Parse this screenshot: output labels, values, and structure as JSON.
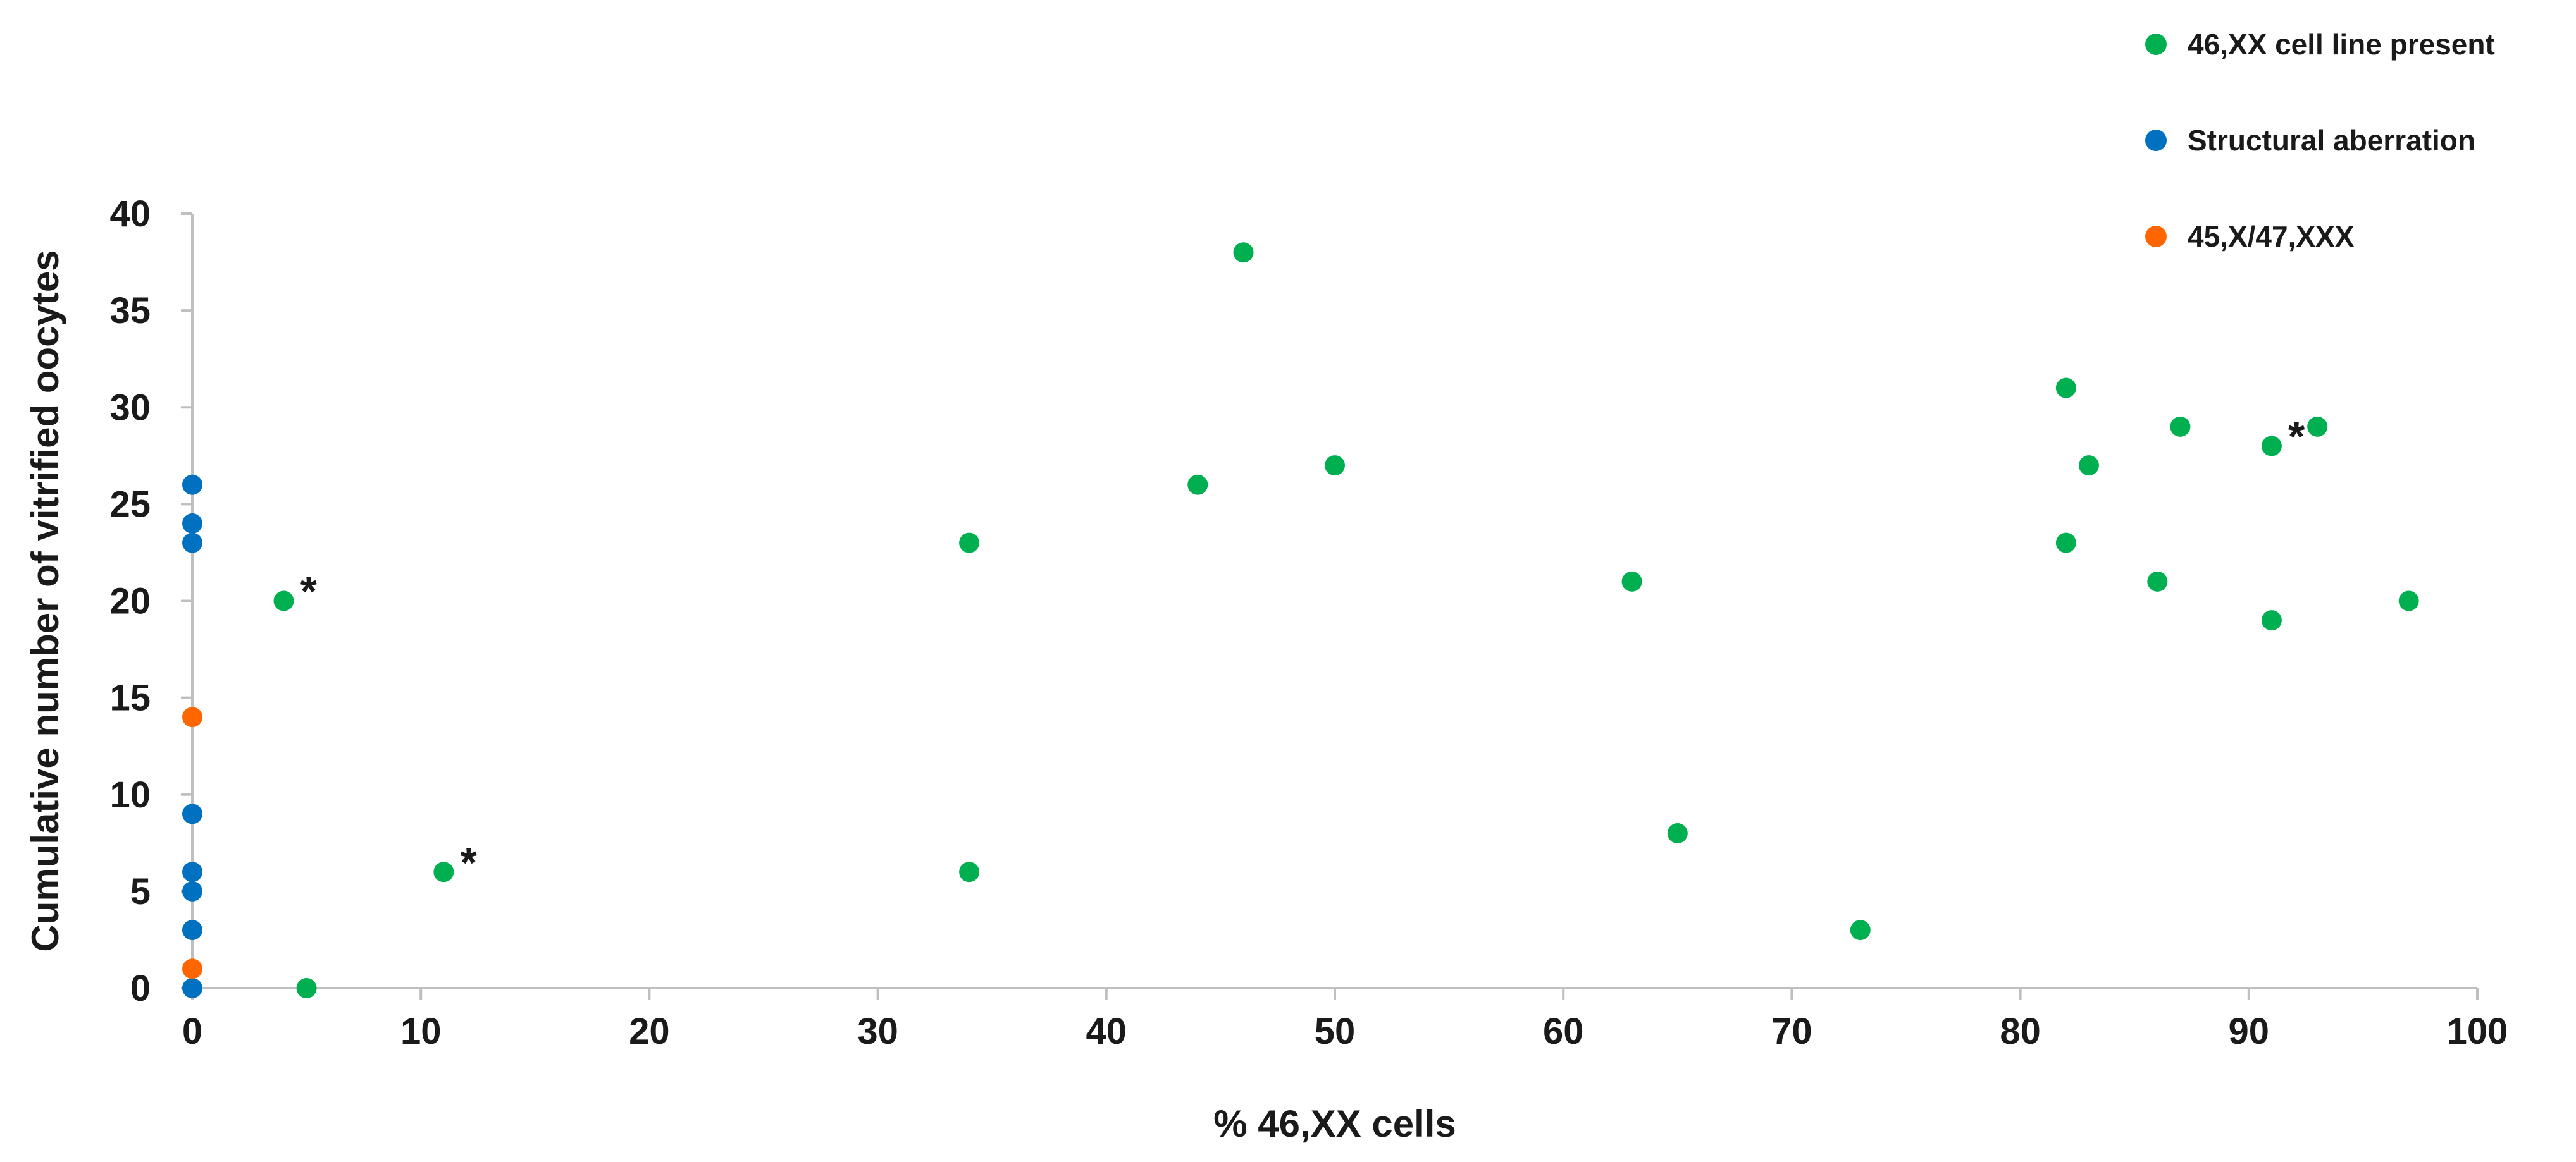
{
  "chart_data": {
    "type": "scatter",
    "xlabel": "% 46,XX cells",
    "ylabel": "Cumulative number of vitrified oocytes",
    "xlim": [
      0,
      100
    ],
    "ylim": [
      0,
      40
    ],
    "x_ticks": [
      0,
      10,
      20,
      30,
      40,
      50,
      60,
      70,
      80,
      90,
      100
    ],
    "y_ticks": [
      0,
      5,
      10,
      15,
      20,
      25,
      30,
      35,
      40
    ],
    "grid": false,
    "legend_position": "top-right",
    "series": [
      {
        "name": "46,XX cell line present",
        "color": "#00b050",
        "points": [
          {
            "x": 4,
            "y": 20,
            "note": "*"
          },
          {
            "x": 5,
            "y": 0
          },
          {
            "x": 11,
            "y": 6,
            "note": "*"
          },
          {
            "x": 34,
            "y": 23
          },
          {
            "x": 34,
            "y": 6
          },
          {
            "x": 44,
            "y": 26
          },
          {
            "x": 46,
            "y": 38
          },
          {
            "x": 50,
            "y": 27
          },
          {
            "x": 63,
            "y": 21
          },
          {
            "x": 65,
            "y": 8
          },
          {
            "x": 73,
            "y": 3
          },
          {
            "x": 82,
            "y": 31
          },
          {
            "x": 82,
            "y": 23
          },
          {
            "x": 83,
            "y": 27
          },
          {
            "x": 86,
            "y": 21
          },
          {
            "x": 87,
            "y": 29
          },
          {
            "x": 91,
            "y": 28,
            "note": "*"
          },
          {
            "x": 91,
            "y": 19
          },
          {
            "x": 93,
            "y": 29
          },
          {
            "x": 97,
            "y": 20
          }
        ]
      },
      {
        "name": "Structural aberration",
        "color": "#0070c0",
        "points": [
          {
            "x": 0,
            "y": 26
          },
          {
            "x": 0,
            "y": 24
          },
          {
            "x": 0,
            "y": 23
          },
          {
            "x": 0,
            "y": 9
          },
          {
            "x": 0,
            "y": 6
          },
          {
            "x": 0,
            "y": 5
          },
          {
            "x": 0,
            "y": 3
          },
          {
            "x": 0,
            "y": 0
          }
        ]
      },
      {
        "name": "45,X/47,XXX",
        "color": "#ff6600",
        "points": [
          {
            "x": 0,
            "y": 14
          },
          {
            "x": 0,
            "y": 1
          }
        ]
      }
    ]
  }
}
